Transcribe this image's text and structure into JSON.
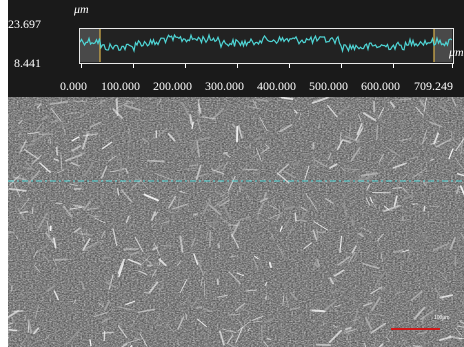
{
  "profile": {
    "y_max": "23.697",
    "y_min": "8.441",
    "y_unit": "μm",
    "x_unit": "μm",
    "x_ticks": [
      "0.000",
      "100.000",
      "200.000",
      "300.000",
      "400.000",
      "500.000",
      "600.000",
      "709.249"
    ]
  },
  "scale_bar": {
    "label": "100μm"
  },
  "colors": {
    "profile_line": "#4fd6d6",
    "guide_line": "#4fd6d6",
    "marker": "#d9b24a",
    "scale_bar": "#d01818"
  }
}
